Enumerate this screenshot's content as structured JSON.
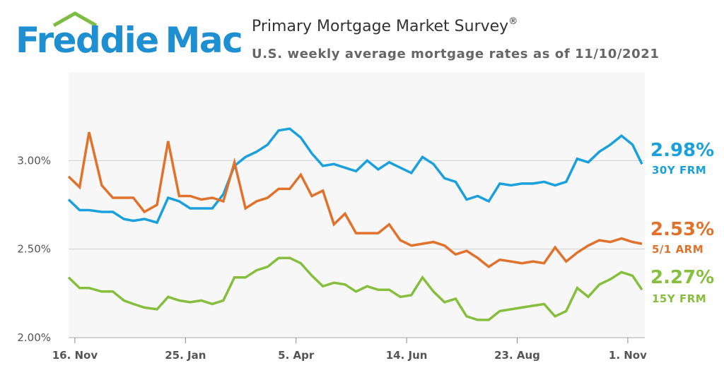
{
  "brand": {
    "word1": "Freddie",
    "word2": "Mac",
    "color": "#1e8fd0",
    "roof_color": "#7cbd42"
  },
  "header": {
    "title": "Primary Mortgage Market Survey",
    "title_mark": "®",
    "subtitle": "U.S. weekly average mortgage rates as of 11/10/2021"
  },
  "chart_data": {
    "type": "line",
    "title": "Primary Mortgage Market Survey",
    "x": [
      "2020-11-12",
      "2020-11-19",
      "2020-11-25",
      "2020-12-03",
      "2020-12-10",
      "2020-12-17",
      "2020-12-23",
      "2020-12-30",
      "2021-01-07",
      "2021-01-14",
      "2021-01-21",
      "2021-01-28",
      "2021-02-04",
      "2021-02-11",
      "2021-02-18",
      "2021-02-25",
      "2021-03-04",
      "2021-03-11",
      "2021-03-18",
      "2021-03-25",
      "2021-04-01",
      "2021-04-08",
      "2021-04-15",
      "2021-04-22",
      "2021-04-29",
      "2021-05-06",
      "2021-05-13",
      "2021-05-20",
      "2021-05-27",
      "2021-06-03",
      "2021-06-10",
      "2021-06-17",
      "2021-06-24",
      "2021-07-01",
      "2021-07-08",
      "2021-07-15",
      "2021-07-22",
      "2021-07-29",
      "2021-08-05",
      "2021-08-12",
      "2021-08-19",
      "2021-08-26",
      "2021-09-02",
      "2021-09-09",
      "2021-09-16",
      "2021-09-23",
      "2021-09-30",
      "2021-10-07",
      "2021-10-14",
      "2021-10-21",
      "2021-10-28",
      "2021-11-04",
      "2021-11-10"
    ],
    "x_ticks": [
      "16. Nov",
      "25. Jan",
      "5. Apr",
      "14. Jun",
      "23. Aug",
      "1. Nov"
    ],
    "x_tick_dates": [
      "2020-11-16",
      "2021-01-25",
      "2021-04-05",
      "2021-06-14",
      "2021-08-23",
      "2021-11-01"
    ],
    "y_ticks": [
      "2.00%",
      "2.50%",
      "3.00%"
    ],
    "ylim": [
      2.0,
      3.5
    ],
    "grid": "horizontal",
    "series": [
      {
        "name": "30Y FRM",
        "color": "#1aa0dc",
        "values": [
          2.78,
          2.72,
          2.72,
          2.71,
          2.71,
          2.67,
          2.66,
          2.67,
          2.65,
          2.79,
          2.77,
          2.73,
          2.73,
          2.73,
          2.81,
          2.97,
          3.02,
          3.05,
          3.09,
          3.17,
          3.18,
          3.13,
          3.04,
          2.97,
          2.98,
          2.96,
          2.94,
          3.0,
          2.95,
          2.99,
          2.96,
          2.93,
          3.02,
          2.98,
          2.9,
          2.88,
          2.78,
          2.8,
          2.77,
          2.87,
          2.86,
          2.87,
          2.87,
          2.88,
          2.86,
          2.88,
          3.01,
          2.99,
          3.05,
          3.09,
          3.14,
          3.09,
          2.98
        ]
      },
      {
        "name": "5/1 ARM",
        "color": "#e0722b",
        "values": [
          2.91,
          2.85,
          3.16,
          2.86,
          2.79,
          2.79,
          2.79,
          2.71,
          2.75,
          3.11,
          2.8,
          2.8,
          2.78,
          2.79,
          2.77,
          2.99,
          2.73,
          2.77,
          2.79,
          2.84,
          2.84,
          2.92,
          2.8,
          2.83,
          2.64,
          2.7,
          2.59,
          2.59,
          2.59,
          2.64,
          2.55,
          2.52,
          2.53,
          2.54,
          2.52,
          2.47,
          2.49,
          2.45,
          2.4,
          2.44,
          2.43,
          2.42,
          2.43,
          2.42,
          2.51,
          2.43,
          2.48,
          2.52,
          2.55,
          2.54,
          2.56,
          2.54,
          2.53
        ]
      },
      {
        "name": "15Y FRM",
        "color": "#86bf3e",
        "values": [
          2.34,
          2.28,
          2.28,
          2.26,
          2.26,
          2.21,
          2.19,
          2.17,
          2.16,
          2.23,
          2.21,
          2.2,
          2.21,
          2.19,
          2.21,
          2.34,
          2.34,
          2.38,
          2.4,
          2.45,
          2.45,
          2.42,
          2.35,
          2.29,
          2.31,
          2.3,
          2.26,
          2.29,
          2.27,
          2.27,
          2.23,
          2.24,
          2.34,
          2.26,
          2.2,
          2.22,
          2.12,
          2.1,
          2.1,
          2.15,
          2.16,
          2.17,
          2.18,
          2.19,
          2.12,
          2.15,
          2.28,
          2.23,
          2.3,
          2.33,
          2.37,
          2.35,
          2.27
        ]
      }
    ],
    "end_labels": [
      {
        "series": "30Y FRM",
        "value": "2.98%",
        "label": "30Y FRM"
      },
      {
        "series": "5/1 ARM",
        "value": "2.53%",
        "label": "5/1 ARM"
      },
      {
        "series": "15Y FRM",
        "value": "2.27%",
        "label": "15Y FRM"
      }
    ]
  }
}
